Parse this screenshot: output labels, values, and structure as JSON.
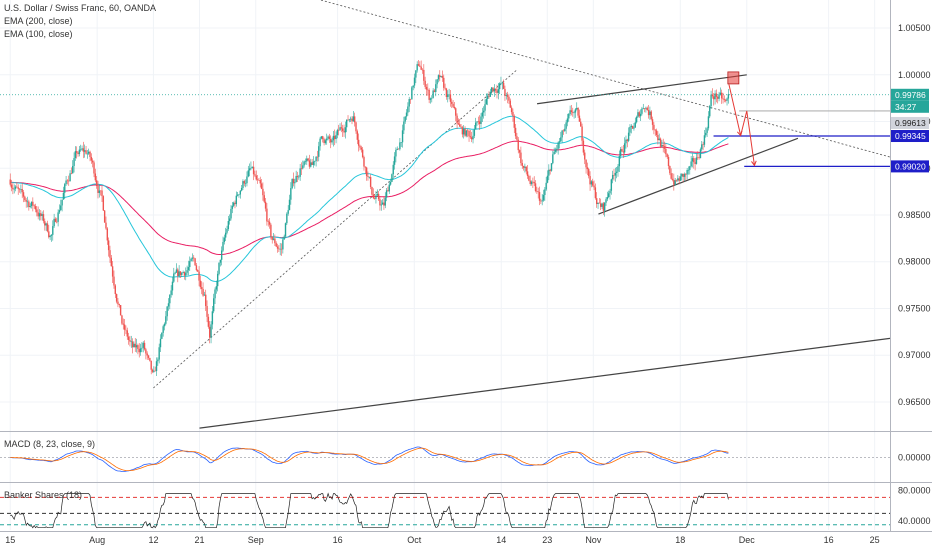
{
  "header": {
    "title": "U.S. Dollar / Swiss Franc, 60, OANDA",
    "ema200": "EMA (200, close)",
    "ema100": "EMA (100, close)"
  },
  "macd": {
    "label": "MACD (8, 23, close, 9)"
  },
  "banker": {
    "label": "Banker Shares (18)"
  },
  "colors": {
    "up": "#26a69a",
    "down": "#ef5350",
    "ema200": "#e91e63",
    "ema100": "#26c6da",
    "price_line": "#26a69a",
    "blue_level": "#1e1ec8",
    "arrow": "#e53935"
  },
  "price_tags": {
    "last": "0.99786",
    "countdown": "34:27",
    "gray": "0.99613",
    "level1": "0.99345",
    "level2": "0.99020"
  },
  "chart_data": [
    {
      "type": "candlestick",
      "title": "U.S. Dollar / Swiss Franc, 60, OANDA",
      "ylim": [
        0.962,
        1.008
      ],
      "y_ticks": [
        "1.00500",
        "1.00000",
        "0.99500",
        "0.99000",
        "0.98500",
        "0.98000",
        "0.97500",
        "0.97000",
        "0.96500"
      ],
      "y_tick_values": [
        1.005,
        1.0,
        0.995,
        0.99,
        0.985,
        0.98,
        0.975,
        0.97,
        0.965
      ],
      "x_ticks": [
        "15",
        "Aug",
        "12",
        "21",
        "Sep",
        "16",
        "Oct",
        "14",
        "23",
        "Nov",
        "18",
        "Dec",
        "16",
        "25"
      ],
      "x_tick_days": [
        0,
        17,
        28,
        37,
        48,
        64,
        79,
        96,
        105,
        114,
        131,
        144,
        160,
        169
      ],
      "xlim_days": [
        -2,
        172
      ],
      "last_day": 140.6,
      "series": [
        {
          "name": "EMA (200, close)",
          "role": "ema200"
        },
        {
          "name": "EMA (100, close)",
          "role": "ema100"
        }
      ],
      "anchors": [
        [
          0,
          0.9888
        ],
        [
          2,
          0.987
        ],
        [
          5,
          0.9858
        ],
        [
          8,
          0.9828
        ],
        [
          11,
          0.9885
        ],
        [
          13,
          0.9915
        ],
        [
          15,
          0.9918
        ],
        [
          16,
          0.9905
        ],
        [
          18,
          0.9865
        ],
        [
          20,
          0.979
        ],
        [
          22,
          0.973
        ],
        [
          24,
          0.9705
        ],
        [
          26,
          0.971
        ],
        [
          28,
          0.9672
        ],
        [
          30,
          0.973
        ],
        [
          32,
          0.978
        ],
        [
          34,
          0.979
        ],
        [
          36,
          0.98
        ],
        [
          38,
          0.9768
        ],
        [
          39,
          0.9725
        ],
        [
          41,
          0.98
        ],
        [
          43,
          0.985
        ],
        [
          45,
          0.988
        ],
        [
          47,
          0.9898
        ],
        [
          49,
          0.9875
        ],
        [
          51,
          0.9825
        ],
        [
          53,
          0.9812
        ],
        [
          55,
          0.988
        ],
        [
          57,
          0.9905
        ],
        [
          59,
          0.99
        ],
        [
          61,
          0.9935
        ],
        [
          63,
          0.9925
        ],
        [
          65,
          0.9945
        ],
        [
          67,
          0.9958
        ],
        [
          69,
          0.9912
        ],
        [
          71,
          0.987
        ],
        [
          73,
          0.9858
        ],
        [
          75,
          0.9905
        ],
        [
          77,
          0.9945
        ],
        [
          79,
          0.9995
        ],
        [
          80,
          1.0012
        ],
        [
          82,
          0.9975
        ],
        [
          84,
          0.9995
        ],
        [
          86,
          0.997
        ],
        [
          88,
          0.994
        ],
        [
          90,
          0.9935
        ],
        [
          92,
          0.9955
        ],
        [
          94,
          0.9985
        ],
        [
          96,
          0.999
        ],
        [
          98,
          0.996
        ],
        [
          100,
          0.9905
        ],
        [
          102,
          0.988
        ],
        [
          104,
          0.9862
        ],
        [
          106,
          0.991
        ],
        [
          108,
          0.9935
        ],
        [
          110,
          0.996
        ],
        [
          111,
          0.9955
        ],
        [
          113,
          0.9895
        ],
        [
          115,
          0.986
        ],
        [
          116,
          0.9857
        ],
        [
          118,
          0.9895
        ],
        [
          120,
          0.9925
        ],
        [
          122,
          0.9945
        ],
        [
          124,
          0.997
        ],
        [
          125,
          0.996
        ],
        [
          127,
          0.993
        ],
        [
          129,
          0.9895
        ],
        [
          130,
          0.9885
        ],
        [
          132,
          0.9892
        ],
        [
          134,
          0.9905
        ],
        [
          136,
          0.994
        ],
        [
          137,
          0.9975
        ],
        [
          138,
          0.9978
        ],
        [
          140,
          0.9968
        ],
        [
          140.6,
          0.9979
        ]
      ],
      "lines": [
        {
          "name": "descending-trendline",
          "style": "dotted",
          "from": [
            11,
            1.0155
          ],
          "to": [
            172,
            0.9912
          ]
        },
        {
          "name": "uptrend-line",
          "style": "dotted",
          "from": [
            28,
            0.9665
          ],
          "to": [
            99,
            1.0005
          ]
        },
        {
          "name": "wedge-upper",
          "style": "solid",
          "from": [
            103,
            0.9969
          ],
          "to": [
            144,
            1.0
          ]
        },
        {
          "name": "wedge-lower",
          "style": "solid",
          "from": [
            115,
            0.9851
          ],
          "to": [
            154,
            0.9932
          ]
        },
        {
          "name": "long-support",
          "style": "solid",
          "from": [
            37,
            0.9622
          ],
          "to": [
            172,
            0.9718
          ]
        }
      ],
      "levels": [
        {
          "name": "level-0.99345",
          "value": 0.99345,
          "from_day": 137.5
        },
        {
          "name": "level-0.99020",
          "value": 0.9902,
          "from_day": 143.5
        }
      ],
      "projection": [
        [
          140.5,
          0.999
        ],
        [
          142.8,
          0.9935
        ],
        [
          144,
          0.99613
        ],
        [
          145.5,
          0.9903
        ]
      ]
    },
    {
      "type": "line",
      "title": "MACD (8, 23, close, 9)",
      "y_ticks": [
        "0.00000"
      ],
      "y_tick_values": [
        0
      ]
    },
    {
      "type": "line",
      "title": "Banker Shares (18)",
      "ylim": [
        28,
        90
      ],
      "y_ticks": [
        "80.0000",
        "40.0000"
      ],
      "y_tick_values": [
        80,
        40
      ],
      "reference_levels": [
        71,
        50,
        35
      ]
    }
  ]
}
